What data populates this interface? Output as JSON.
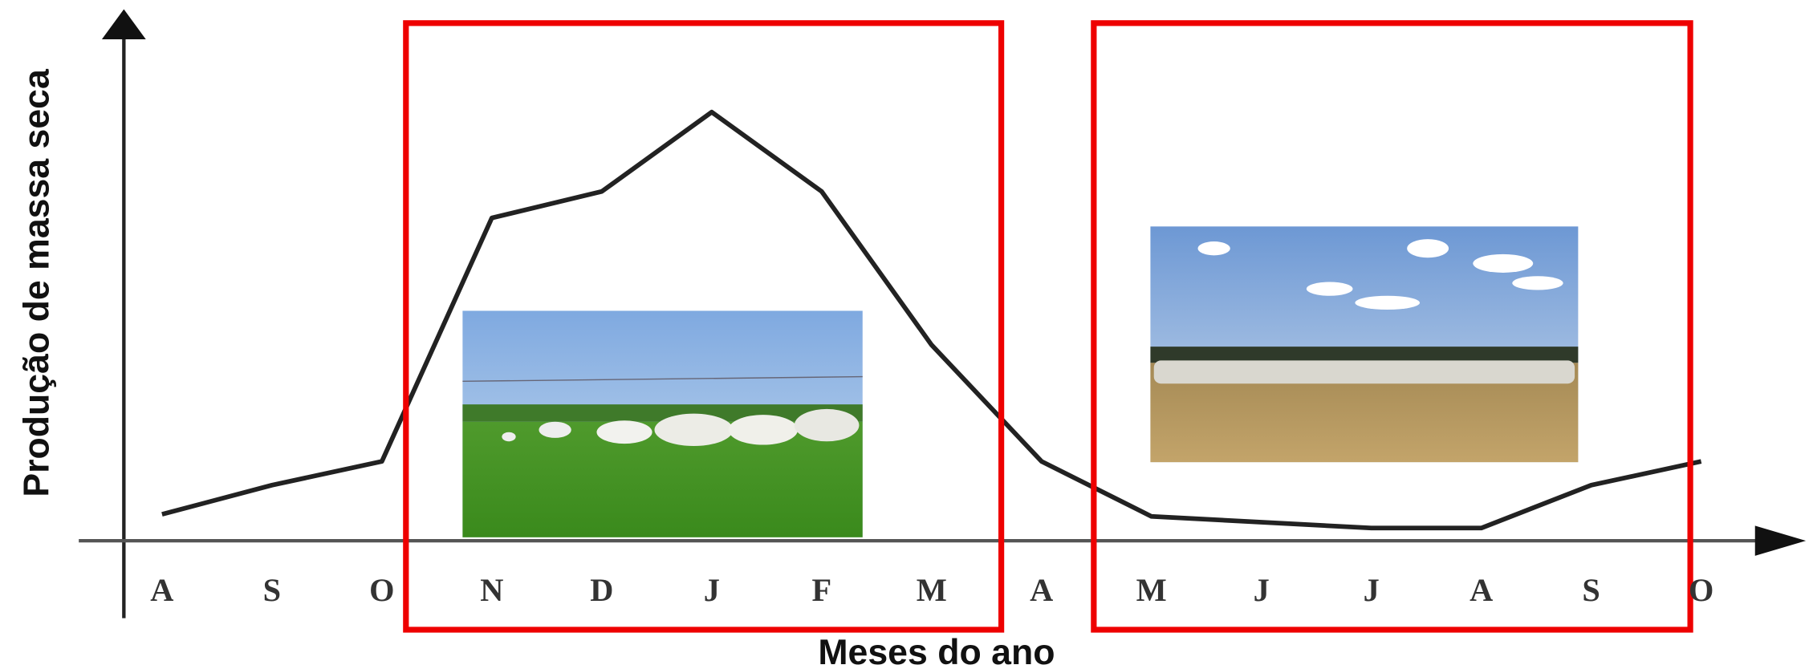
{
  "chart_data": {
    "type": "line",
    "y_label": "Produção de massa seca",
    "x_label": "Meses do ano",
    "categories": [
      "A",
      "S",
      "O",
      "N",
      "D",
      "J",
      "F",
      "M",
      "A",
      "M",
      "J",
      "J",
      "A",
      "S",
      "O"
    ],
    "values": [
      5,
      10.5,
      15,
      61,
      66,
      81,
      66,
      37,
      15,
      4.6,
      3.5,
      2.4,
      2.4,
      10.5,
      15
    ],
    "color": "#222222",
    "ylim": [
      0,
      100
    ]
  }
}
